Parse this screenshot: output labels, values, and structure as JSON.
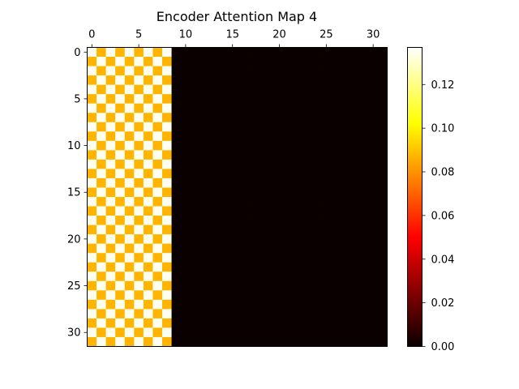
{
  "chart_data": {
    "type": "heatmap",
    "title": "Encoder Attention Map 4",
    "rows": 32,
    "cols": 32,
    "active_cols": 9,
    "pattern": "checkerboard within columns 0-8; columns 9-31 are 0",
    "cell_value_high": 0.135,
    "cell_value_low": 0.087,
    "cell_value_zero": 0.0,
    "x_ticks": [
      0,
      5,
      10,
      15,
      20,
      25,
      30
    ],
    "y_ticks": [
      0,
      5,
      10,
      15,
      20,
      25,
      30
    ],
    "x_axis_position": "top",
    "colormap": "hot",
    "colorbar": {
      "range": [
        0.0,
        0.137
      ],
      "ticks": [
        "0.00",
        "0.02",
        "0.04",
        "0.06",
        "0.08",
        "0.10",
        "0.12"
      ],
      "placement": "right"
    },
    "grid": false
  }
}
